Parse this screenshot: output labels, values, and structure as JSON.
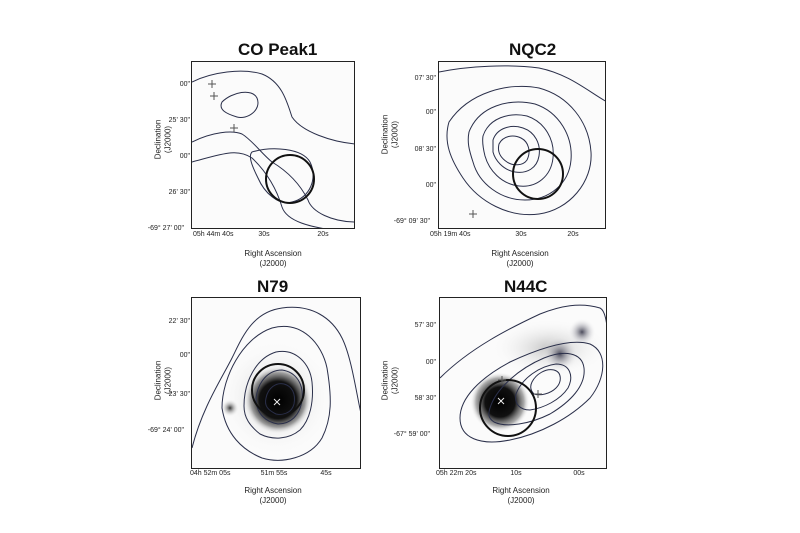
{
  "panels": [
    {
      "title": "CO Peak1",
      "ylabel": "Declination",
      "ylabel_sub": "(J2000)",
      "xlabel": "Right Ascension",
      "xlabel_sub": "(J2000)",
      "yticks": [
        "00\"",
        "25' 30\"",
        "00\"",
        "26' 30\"",
        "-69° 27' 00\""
      ],
      "xticks": [
        "05h 44m 40s",
        "30s",
        "20s"
      ]
    },
    {
      "title": "NQC2",
      "ylabel": "Declination",
      "ylabel_sub": "(J2000)",
      "xlabel": "Right Ascension",
      "xlabel_sub": "(J2000)",
      "yticks": [
        "07' 30\"",
        "00\"",
        "08' 30\"",
        "00\"",
        "-69° 09' 30\""
      ],
      "xticks": [
        "05h 19m 40s",
        "30s",
        "20s"
      ]
    },
    {
      "title": "N79",
      "ylabel": "Declination",
      "ylabel_sub": "(J2000)",
      "xlabel": "Right Ascension",
      "xlabel_sub": "(J2000)",
      "yticks": [
        "22' 30\"",
        "00\"",
        "23' 30\"",
        "-69° 24' 00\""
      ],
      "xticks": [
        "04h 52m 05s",
        "51m 55s",
        "45s"
      ]
    },
    {
      "title": "N44C",
      "ylabel": "Declination",
      "ylabel_sub": "(J2000)",
      "xlabel": "Right Ascension",
      "xlabel_sub": "(J2000)",
      "yticks": [
        "57' 30\"",
        "00\"",
        "58' 30\"",
        "-67° 59' 00\""
      ],
      "xticks": [
        "05h 22m 20s",
        "10s",
        "00s"
      ]
    }
  ]
}
